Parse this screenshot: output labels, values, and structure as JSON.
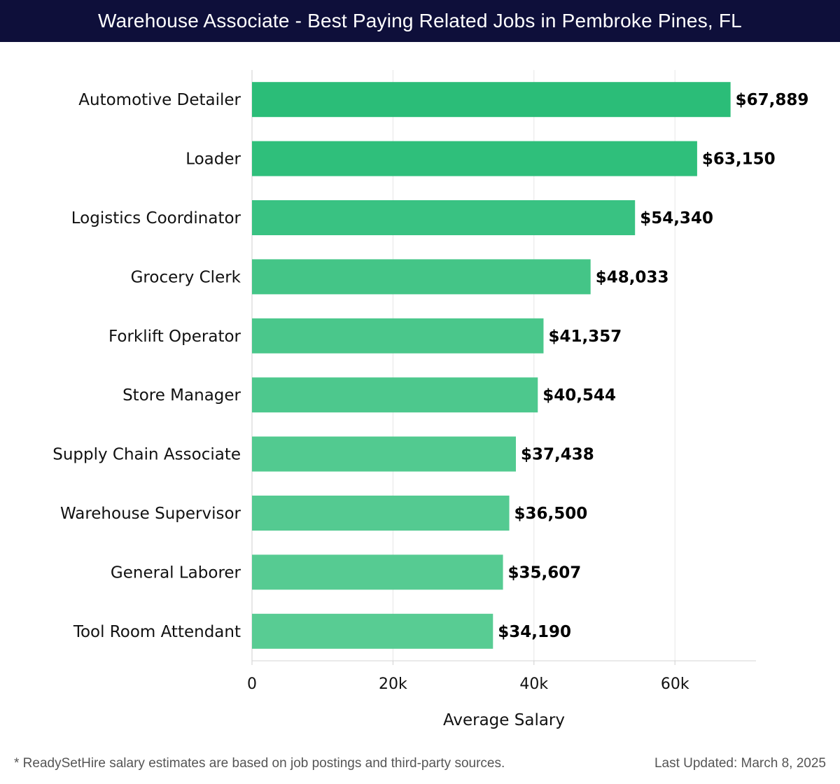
{
  "header": {
    "title": "Warehouse Associate - Best Paying Related Jobs in Pembroke Pines, FL"
  },
  "chart_data": {
    "type": "bar",
    "orientation": "horizontal",
    "categories": [
      "Automotive Detailer",
      "Loader",
      "Logistics Coordinator",
      "Grocery Clerk",
      "Forklift Operator",
      "Store Manager",
      "Supply Chain Associate",
      "Warehouse Supervisor",
      "General Laborer",
      "Tool Room Attendant"
    ],
    "values": [
      67889,
      63150,
      54340,
      48033,
      41357,
      40544,
      37438,
      36500,
      35607,
      34190
    ],
    "value_labels": [
      "$67,889",
      "$63,150",
      "$54,340",
      "$48,033",
      "$41,357",
      "$40,544",
      "$37,438",
      "$36,500",
      "$35,607",
      "$34,190"
    ],
    "xlabel": "Average Salary",
    "ylabel": "",
    "xlim": [
      0,
      71500
    ],
    "xticks": [
      0,
      20000,
      40000,
      60000
    ],
    "xtick_labels": [
      "0",
      "20k",
      "40k",
      "60k"
    ],
    "grid": true,
    "bar_colors": [
      "#2bbd78",
      "#2fbf7b",
      "#39c282",
      "#44c587",
      "#4ac78b",
      "#4dc88d",
      "#52ca90",
      "#54ca91",
      "#56cb92",
      "#58cc93"
    ]
  },
  "footer": {
    "note": "* ReadySetHire salary estimates are based on job postings and third-party sources.",
    "updated": "Last Updated: March 8, 2025"
  }
}
